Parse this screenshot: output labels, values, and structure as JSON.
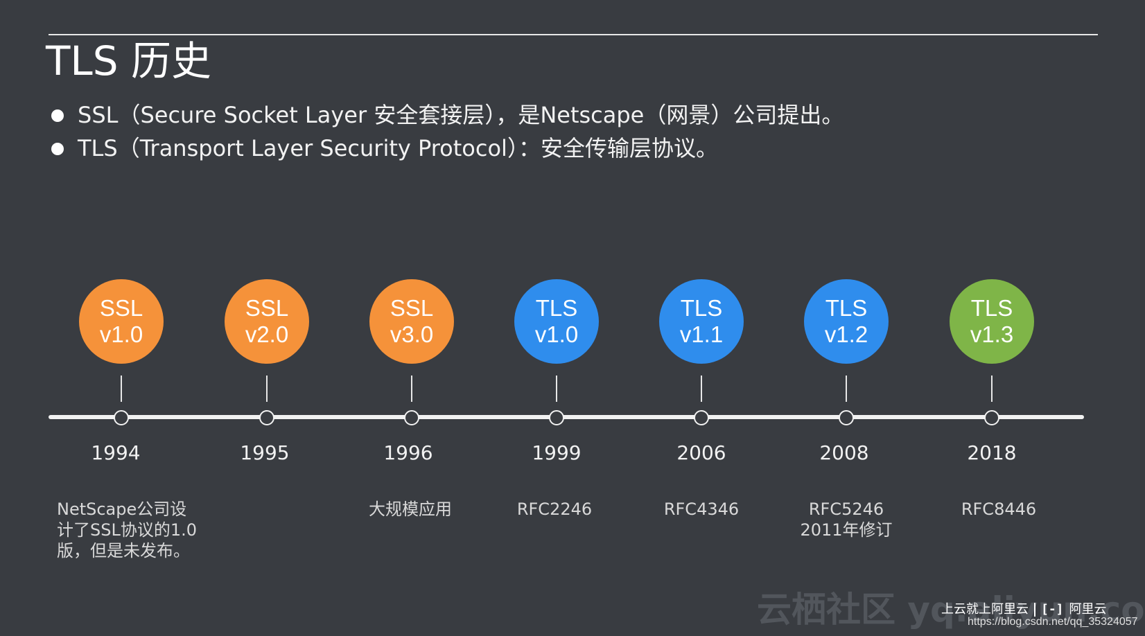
{
  "title": "TLS 历史",
  "bullets": [
    "SSL（Secure Socket Layer  安全套接层），是Netscape（网景）公司提出。",
    "TLS（Transport Layer Security Protocol）：安全传输层协议。"
  ],
  "colors": {
    "background": "#393c41",
    "ssl_orange": "#f5923a",
    "tls_blue": "#2f8ded",
    "tls_green": "#7fb548"
  },
  "milestones": [
    {
      "line1": "SSL",
      "line2": "v1.0",
      "year": "1994",
      "note": "NetScape公司设\n计了SSL协议的1.0\n版，但是未发布。",
      "color": "#f5923a"
    },
    {
      "line1": "SSL",
      "line2": "v2.0",
      "year": "1995",
      "note": "",
      "color": "#f5923a"
    },
    {
      "line1": "SSL",
      "line2": "v3.0",
      "year": "1996",
      "note": "大规模应用",
      "color": "#f5923a"
    },
    {
      "line1": "TLS",
      "line2": "v1.0",
      "year": "1999",
      "note": "RFC2246",
      "color": "#2f8ded"
    },
    {
      "line1": "TLS",
      "line2": "v1.1",
      "year": "2006",
      "note": "RFC4346",
      "color": "#2f8ded"
    },
    {
      "line1": "TLS",
      "line2": "v1.2",
      "year": "2008",
      "note": "RFC5246\n2011年修订",
      "color": "#2f8ded"
    },
    {
      "line1": "TLS",
      "line2": "v1.3",
      "year": "2018",
      "note": "RFC8446",
      "color": "#7fb548"
    }
  ],
  "footer": {
    "watermark": "云栖社区 yq.aliyun.com",
    "slogan": "上云就上阿里云",
    "brand": "阿里云",
    "url": "https://blog.csdn.net/qq_35324057"
  }
}
